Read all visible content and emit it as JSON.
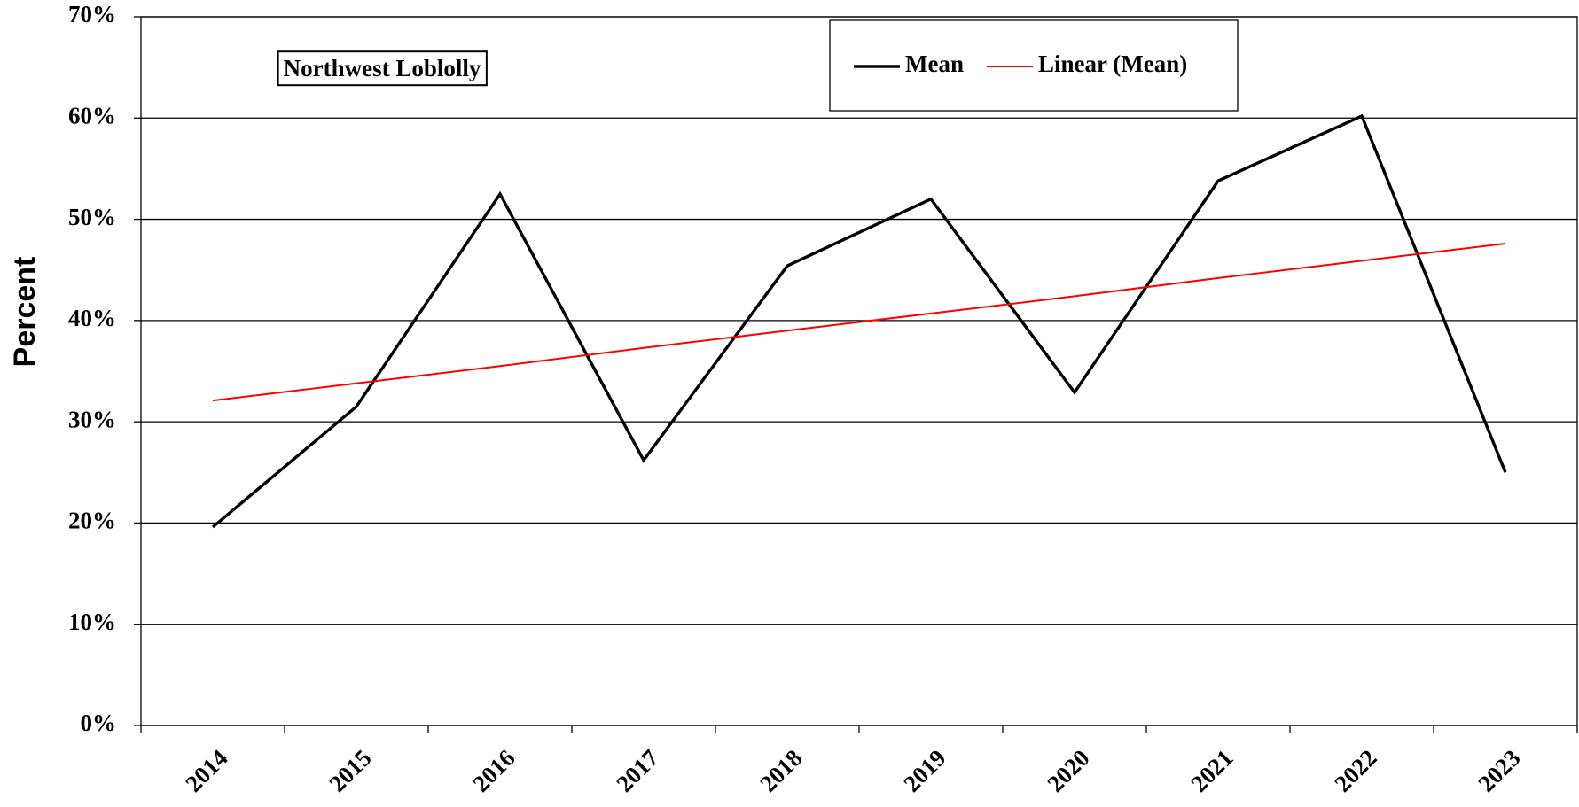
{
  "chart_data": {
    "type": "line",
    "title": "Northwest Loblolly",
    "y_label": "Percent",
    "categories": [
      "2014",
      "2015",
      "2016",
      "2017",
      "2018",
      "2019",
      "2020",
      "2021",
      "2022",
      "2023"
    ],
    "series": [
      {
        "name": "Mean",
        "color": "#000000",
        "values": [
          19.6,
          31.5,
          52.5,
          26.2,
          45.4,
          52.0,
          32.9,
          53.8,
          60.2,
          25.0
        ]
      },
      {
        "name": "Linear (Mean)",
        "color": "#ff0000",
        "values": [
          32.1,
          33.8,
          35.5,
          37.3,
          39.0,
          40.7,
          42.4,
          44.2,
          45.9,
          47.6
        ]
      }
    ],
    "ylim": [
      0,
      70
    ],
    "yticks": [
      {
        "value": 0,
        "label": "0%"
      },
      {
        "value": 10,
        "label": "10%"
      },
      {
        "value": 20,
        "label": "20%"
      },
      {
        "value": 30,
        "label": "30%"
      },
      {
        "value": 40,
        "label": "40%"
      },
      {
        "value": 50,
        "label": "50%"
      },
      {
        "value": 60,
        "label": "60%"
      },
      {
        "value": 70,
        "label": "70%"
      }
    ],
    "grid": true
  }
}
